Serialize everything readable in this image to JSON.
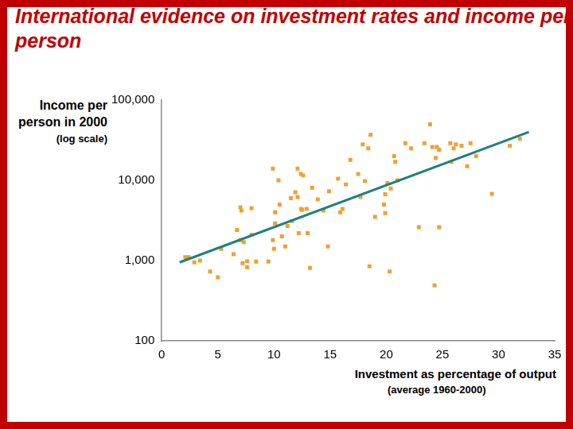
{
  "chart_data": {
    "type": "scatter",
    "title": "International evidence on investment rates and income per person",
    "x_label": [
      "Investment as percentage of output",
      "(average 1960-2000)"
    ],
    "y_label": [
      "Income per person in 2000",
      "(log scale)"
    ],
    "log": "y",
    "grid": false,
    "xlim": [
      0,
      35
    ],
    "xticks": [
      0,
      5,
      10,
      15,
      20,
      25,
      30,
      35
    ],
    "ylim": [
      100,
      100000
    ],
    "yticks": [
      {
        "value": 100,
        "label": "100"
      },
      {
        "value": 1000,
        "label": "1,000"
      },
      {
        "value": 10000,
        "label": "10,000"
      },
      {
        "value": 100000,
        "label": "100,000"
      }
    ],
    "series": [
      {
        "type": "scatter",
        "color": "#f0a030",
        "marker": "square",
        "x": [
          2.1,
          2.4,
          2.9,
          3.4,
          4.3,
          5.0,
          5.3,
          6.4,
          6.7,
          7.0,
          7.1,
          7.0,
          7.2,
          7.3,
          7.6,
          7.6,
          8.0,
          8.0,
          8.4,
          9.5,
          9.9,
          9.9,
          10.0,
          10.1,
          10.1,
          10.4,
          10.5,
          10.7,
          11.0,
          11.2,
          11.5,
          11.6,
          11.9,
          12.1,
          12.1,
          12.2,
          12.4,
          12.4,
          12.5,
          12.6,
          12.9,
          13.0,
          13.2,
          13.4,
          13.9,
          14.4,
          14.8,
          14.9,
          15.7,
          15.9,
          16.1,
          16.4,
          16.8,
          17.5,
          17.7,
          17.9,
          18.1,
          18.4,
          18.5,
          18.6,
          19.0,
          19.8,
          19.9,
          19.9,
          20.1,
          20.3,
          20.4,
          20.7,
          20.8,
          21.0,
          21.7,
          22.2,
          22.9,
          23.4,
          23.9,
          24.1,
          24.4,
          24.3,
          24.5,
          24.7,
          24.7,
          25.7,
          25.8,
          26.0,
          26.2,
          26.7,
          27.2,
          27.5,
          28.0,
          29.4,
          31.0,
          31.9
        ],
        "values": [
          1100,
          1100,
          950,
          1000,
          730,
          620,
          1400,
          1200,
          2400,
          4600,
          4200,
          1800,
          930,
          1700,
          830,
          980,
          2100,
          4500,
          970,
          970,
          14000,
          1800,
          1400,
          2900,
          4000,
          10000,
          5000,
          2000,
          1500,
          2700,
          6000,
          3100,
          7100,
          14000,
          6200,
          2200,
          4400,
          12000,
          4300,
          11500,
          4400,
          2200,
          810,
          8100,
          5800,
          4200,
          1500,
          7300,
          10500,
          4000,
          4400,
          8900,
          18000,
          12000,
          6200,
          28000,
          9800,
          25000,
          850,
          37000,
          3500,
          5000,
          3900,
          6700,
          9300,
          730,
          7900,
          20000,
          17000,
          10000,
          29000,
          25000,
          2600,
          29000,
          50000,
          26000,
          19000,
          490,
          26000,
          2600,
          24000,
          29000,
          17000,
          25000,
          28000,
          27000,
          15000,
          29000,
          20000,
          6800,
          27000,
          33000
        ]
      },
      {
        "type": "line",
        "color": "#1e8080",
        "line_style": "solid",
        "x": [
          1.6,
          32.7
        ],
        "values": [
          950,
          40000
        ]
      }
    ]
  }
}
